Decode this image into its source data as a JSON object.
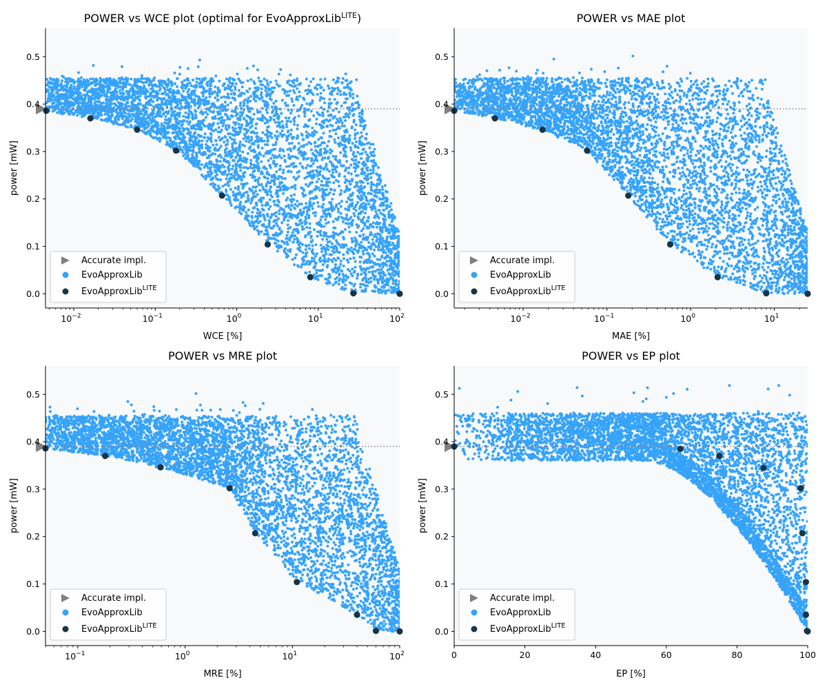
{
  "colors": {
    "evo": "#36a3fa",
    "lite": "#183548",
    "accurate": "#808080",
    "plot_bg": "#f8f9fb",
    "ref_line": "#808080"
  },
  "legend": {
    "accurate": "Accurate impl.",
    "evo": "EvoApproxLib",
    "lite_base": "EvoApproxLib",
    "lite_sup": "LITE"
  },
  "chart_data": [
    {
      "type": "scatter",
      "id": "wce",
      "title": "POWER vs WCE plot (optimal for EvoApproxLib",
      "title_sup": "LITE",
      "title_end": ")",
      "xlabel": "WCE [%]",
      "ylabel": "power [mW]",
      "xscale": "log",
      "xlim": [
        0.0045,
        100
      ],
      "ylim": [
        -0.03,
        0.56
      ],
      "xticks": [
        {
          "v": 0.01,
          "base": "10",
          "exp": "−2"
        },
        {
          "v": 0.1,
          "base": "10",
          "exp": "−1"
        },
        {
          "v": 1,
          "base": "10",
          "exp": "0"
        },
        {
          "v": 10,
          "base": "10",
          "exp": "1"
        },
        {
          "v": 100,
          "base": "10",
          "exp": "2"
        }
      ],
      "yticks": [
        "0.0",
        "0.1",
        "0.2",
        "0.3",
        "0.4",
        "0.5"
      ],
      "accurate_power": 0.39,
      "lite_points": [
        [
          0.0046,
          0.386
        ],
        [
          0.016,
          0.37
        ],
        [
          0.06,
          0.346
        ],
        [
          0.18,
          0.302
        ],
        [
          0.66,
          0.207
        ],
        [
          2.4,
          0.104
        ],
        [
          8,
          0.035
        ],
        [
          27,
          0.001
        ],
        [
          100,
          0.0
        ]
      ]
    },
    {
      "type": "scatter",
      "id": "mae",
      "title": "POWER vs MAE plot",
      "title_sup": "",
      "title_end": "",
      "xlabel": "MAE [%]",
      "ylabel": "power [mW]",
      "xscale": "log",
      "xlim": [
        0.0015,
        25
      ],
      "ylim": [
        -0.03,
        0.56
      ],
      "xticks": [
        {
          "v": 0.01,
          "base": "10",
          "exp": "−2"
        },
        {
          "v": 0.1,
          "base": "10",
          "exp": "−1"
        },
        {
          "v": 1,
          "base": "10",
          "exp": "0"
        },
        {
          "v": 10,
          "base": "10",
          "exp": "1"
        }
      ],
      "yticks": [
        "0.0",
        "0.1",
        "0.2",
        "0.3",
        "0.4",
        "0.5"
      ],
      "accurate_power": 0.39,
      "lite_points": [
        [
          0.0015,
          0.386
        ],
        [
          0.0046,
          0.37
        ],
        [
          0.017,
          0.346
        ],
        [
          0.058,
          0.302
        ],
        [
          0.18,
          0.207
        ],
        [
          0.57,
          0.104
        ],
        [
          2.1,
          0.035
        ],
        [
          8,
          0.001
        ],
        [
          25,
          0.0
        ]
      ]
    },
    {
      "type": "scatter",
      "id": "mre",
      "title": "POWER vs MRE plot",
      "title_sup": "",
      "title_end": "",
      "xlabel": "MRE [%]",
      "ylabel": "power [mW]",
      "xscale": "log",
      "xlim": [
        0.05,
        100
      ],
      "ylim": [
        -0.03,
        0.56
      ],
      "xticks": [
        {
          "v": 0.1,
          "base": "10",
          "exp": "−1"
        },
        {
          "v": 1,
          "base": "10",
          "exp": "0"
        },
        {
          "v": 10,
          "base": "10",
          "exp": "1"
        },
        {
          "v": 100,
          "base": "10",
          "exp": "2"
        }
      ],
      "yticks": [
        "0.0",
        "0.1",
        "0.2",
        "0.3",
        "0.4",
        "0.5"
      ],
      "accurate_power": 0.39,
      "lite_points": [
        [
          0.05,
          0.386
        ],
        [
          0.18,
          0.37
        ],
        [
          0.59,
          0.346
        ],
        [
          2.6,
          0.302
        ],
        [
          4.5,
          0.207
        ],
        [
          11,
          0.104
        ],
        [
          40,
          0.035
        ],
        [
          60,
          0.001
        ],
        [
          100,
          0.0
        ]
      ]
    },
    {
      "type": "scatter",
      "id": "ep",
      "title": "POWER vs EP plot",
      "title_sup": "",
      "title_end": "",
      "xlabel": "EP [%]",
      "ylabel": "power [mW]",
      "xscale": "linear",
      "xlim": [
        0,
        100
      ],
      "ylim": [
        -0.03,
        0.56
      ],
      "xticks": [
        {
          "v": 0,
          "label": "0"
        },
        {
          "v": 20,
          "label": "20"
        },
        {
          "v": 40,
          "label": "40"
        },
        {
          "v": 60,
          "label": "60"
        },
        {
          "v": 80,
          "label": "80"
        },
        {
          "v": 100,
          "label": "100"
        }
      ],
      "yticks": [
        "0.0",
        "0.1",
        "0.2",
        "0.3",
        "0.4",
        "0.5"
      ],
      "accurate_power": 0.39,
      "lite_points": [
        [
          0,
          0.39
        ],
        [
          64,
          0.385
        ],
        [
          75,
          0.37
        ],
        [
          87.5,
          0.345
        ],
        [
          98,
          0.302
        ],
        [
          98.5,
          0.207
        ],
        [
          99.5,
          0.104
        ],
        [
          99.5,
          0.035
        ],
        [
          99.8,
          0.001
        ],
        [
          100,
          0.0
        ]
      ]
    }
  ]
}
